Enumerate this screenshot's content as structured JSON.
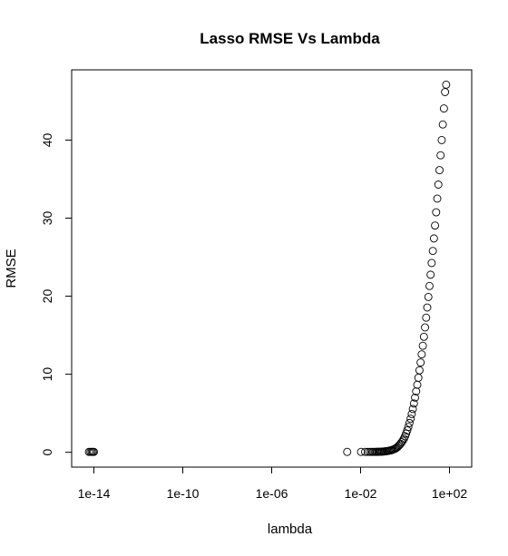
{
  "chart_data": {
    "type": "scatter",
    "title": "Lasso RMSE Vs Lambda",
    "xlabel": "lambda",
    "ylabel": "RMSE",
    "x_scale": "log10",
    "xlim": [
      1e-15,
      1000.0
    ],
    "ylim": [
      -1.9,
      49
    ],
    "x_ticks": [
      1e-14,
      1e-10,
      1e-06,
      0.01,
      100.0
    ],
    "x_tick_labels": [
      "1e-14",
      "1e-10",
      "1e-06",
      "1e-02",
      "1e+02"
    ],
    "y_ticks": [
      0,
      10,
      20,
      30,
      40
    ],
    "y_tick_labels": [
      "0",
      "10",
      "20",
      "30",
      "40"
    ],
    "grid": false,
    "legend": "none",
    "marker": "open-circle",
    "marker_color": "#000000",
    "points": [
      {
        "x": 6e-15,
        "y": 0.05
      },
      {
        "x": 7e-15,
        "y": 0.05
      },
      {
        "x": 8e-15,
        "y": 0.05
      },
      {
        "x": 9e-15,
        "y": 0.05
      },
      {
        "x": 1e-14,
        "y": 0.05
      },
      {
        "x": 0.0025,
        "y": 0.05
      },
      {
        "x": 0.0105,
        "y": 0.05
      },
      {
        "x": 0.016,
        "y": 0.05
      },
      {
        "x": 0.021,
        "y": 0.05
      },
      {
        "x": 0.026,
        "y": 0.05
      },
      {
        "x": 0.031,
        "y": 0.05
      },
      {
        "x": 0.036,
        "y": 0.05
      },
      {
        "x": 0.042,
        "y": 0.05
      },
      {
        "x": 0.048,
        "y": 0.05
      },
      {
        "x": 0.055,
        "y": 0.06
      },
      {
        "x": 0.062,
        "y": 0.06
      },
      {
        "x": 0.07,
        "y": 0.07
      },
      {
        "x": 0.079,
        "y": 0.07
      },
      {
        "x": 0.089,
        "y": 0.08
      },
      {
        "x": 0.1,
        "y": 0.09
      },
      {
        "x": 0.112,
        "y": 0.1
      },
      {
        "x": 0.126,
        "y": 0.12
      },
      {
        "x": 0.141,
        "y": 0.14
      },
      {
        "x": 0.158,
        "y": 0.16
      },
      {
        "x": 0.178,
        "y": 0.18
      },
      {
        "x": 0.2,
        "y": 0.21
      },
      {
        "x": 0.224,
        "y": 0.24
      },
      {
        "x": 0.251,
        "y": 0.28
      },
      {
        "x": 0.282,
        "y": 0.33
      },
      {
        "x": 0.316,
        "y": 0.39
      },
      {
        "x": 0.355,
        "y": 0.46
      },
      {
        "x": 0.398,
        "y": 0.55
      },
      {
        "x": 0.447,
        "y": 0.65
      },
      {
        "x": 0.501,
        "y": 0.78
      },
      {
        "x": 0.562,
        "y": 0.93
      },
      {
        "x": 0.631,
        "y": 1.1
      },
      {
        "x": 0.708,
        "y": 1.3
      },
      {
        "x": 0.794,
        "y": 1.5
      },
      {
        "x": 0.891,
        "y": 1.75
      },
      {
        "x": 1.0,
        "y": 2.05
      },
      {
        "x": 1.12,
        "y": 2.4
      },
      {
        "x": 1.26,
        "y": 2.8
      },
      {
        "x": 1.41,
        "y": 3.25
      },
      {
        "x": 1.58,
        "y": 3.75
      },
      {
        "x": 1.78,
        "y": 4.3
      },
      {
        "x": 2.0,
        "y": 4.9
      },
      {
        "x": 2.24,
        "y": 5.55
      },
      {
        "x": 2.51,
        "y": 6.25
      },
      {
        "x": 2.82,
        "y": 7.0
      },
      {
        "x": 3.16,
        "y": 7.8
      },
      {
        "x": 3.55,
        "y": 8.65
      },
      {
        "x": 3.98,
        "y": 9.55
      },
      {
        "x": 4.47,
        "y": 10.5
      },
      {
        "x": 5.01,
        "y": 11.5
      },
      {
        "x": 5.62,
        "y": 12.55
      },
      {
        "x": 6.31,
        "y": 13.65
      },
      {
        "x": 7.08,
        "y": 14.8
      },
      {
        "x": 7.94,
        "y": 16.0
      },
      {
        "x": 8.91,
        "y": 17.25
      },
      {
        "x": 10.0,
        "y": 18.55
      },
      {
        "x": 11.2,
        "y": 19.9
      },
      {
        "x": 12.6,
        "y": 21.3
      },
      {
        "x": 14.1,
        "y": 22.75
      },
      {
        "x": 15.8,
        "y": 24.25
      },
      {
        "x": 17.8,
        "y": 25.8
      },
      {
        "x": 20.0,
        "y": 27.4
      },
      {
        "x": 22.4,
        "y": 29.05
      },
      {
        "x": 25.1,
        "y": 30.75
      },
      {
        "x": 28.2,
        "y": 32.5
      },
      {
        "x": 31.6,
        "y": 34.3
      },
      {
        "x": 35.5,
        "y": 36.15
      },
      {
        "x": 39.8,
        "y": 38.05
      },
      {
        "x": 44.7,
        "y": 40.0
      },
      {
        "x": 50.1,
        "y": 42.0
      },
      {
        "x": 56.2,
        "y": 44.05
      },
      {
        "x": 63.1,
        "y": 46.15
      },
      {
        "x": 70.8,
        "y": 47.1
      }
    ]
  }
}
